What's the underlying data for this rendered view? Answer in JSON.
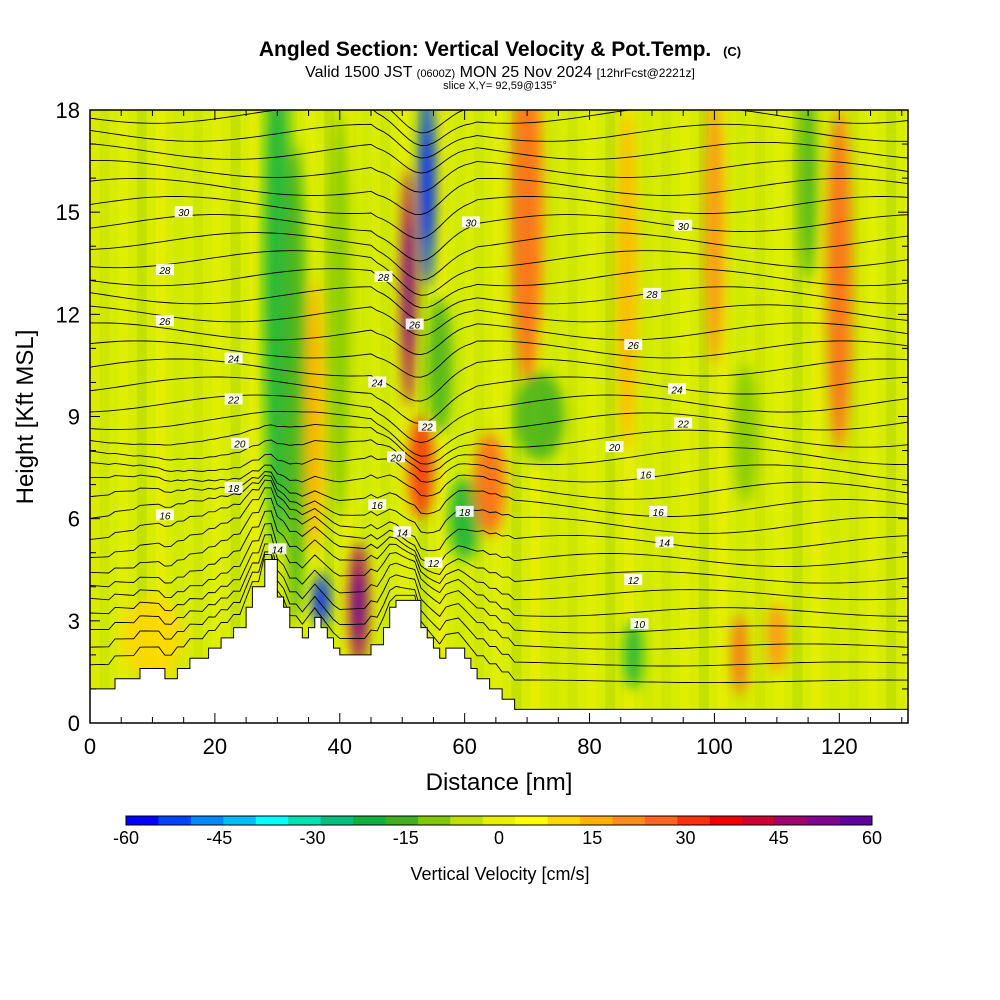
{
  "chart_data": {
    "type": "heatmap",
    "title": "Angled Section: Vertical Velocity & Pot.Temp.",
    "title_unit": "(C)",
    "subtitle_parts": [
      "Valid 1500 JST ",
      "(0600Z)",
      " MON 25 Nov 2024 ",
      "[12hrFcst@2221z]"
    ],
    "slice_label": "slice X,Y= 92,59@135°",
    "xlabel": "Distance [nm]",
    "ylabel": "Height [Kft MSL]",
    "xlim": [
      0,
      131
    ],
    "ylim": [
      0,
      18
    ],
    "x_ticks": [
      "0",
      "20",
      "40",
      "60",
      "80",
      "100",
      "120"
    ],
    "x_tick_values": [
      0,
      20,
      40,
      60,
      80,
      100,
      120
    ],
    "y_ticks": [
      "0",
      "3",
      "6",
      "9",
      "12",
      "15",
      "18"
    ],
    "y_tick_values": [
      0,
      3,
      6,
      9,
      12,
      15,
      18
    ],
    "colorbar": {
      "label": "Vertical Velocity [cm/s]",
      "ticks": [
        "-60",
        "-45",
        "-30",
        "-15",
        "0",
        "15",
        "30",
        "45",
        "60"
      ],
      "range": [
        -60,
        60
      ],
      "colors": [
        "#0000ff",
        "#0044ff",
        "#0088ff",
        "#00bbff",
        "#00ffff",
        "#00e0b0",
        "#00c080",
        "#10b040",
        "#40b020",
        "#80c800",
        "#c0e000",
        "#e8f000",
        "#ffff00",
        "#ffd700",
        "#ffb000",
        "#ff8c1a",
        "#ff6420",
        "#ff3010",
        "#ee0000",
        "#cc0030",
        "#a00070",
        "#800090",
        "#6000a0"
      ]
    },
    "theta_labels": [
      {
        "text": "30",
        "x": 15,
        "y": 15.0
      },
      {
        "text": "30",
        "x": 61,
        "y": 14.7
      },
      {
        "text": "30",
        "x": 95,
        "y": 14.6
      },
      {
        "text": "28",
        "x": 12,
        "y": 13.3
      },
      {
        "text": "28",
        "x": 47,
        "y": 13.1
      },
      {
        "text": "28",
        "x": 90,
        "y": 12.6
      },
      {
        "text": "26",
        "x": 12,
        "y": 11.8
      },
      {
        "text": "26",
        "x": 52,
        "y": 11.7
      },
      {
        "text": "26",
        "x": 87,
        "y": 11.1
      },
      {
        "text": "24",
        "x": 23,
        "y": 10.7
      },
      {
        "text": "24",
        "x": 46,
        "y": 10.0
      },
      {
        "text": "24",
        "x": 94,
        "y": 9.8
      },
      {
        "text": "22",
        "x": 23,
        "y": 9.5
      },
      {
        "text": "22",
        "x": 54,
        "y": 8.7
      },
      {
        "text": "22",
        "x": 95,
        "y": 8.8
      },
      {
        "text": "20",
        "x": 24,
        "y": 8.2
      },
      {
        "text": "20",
        "x": 49,
        "y": 7.8
      },
      {
        "text": "20",
        "x": 84,
        "y": 8.1
      },
      {
        "text": "18",
        "x": 23,
        "y": 6.9
      },
      {
        "text": "18",
        "x": 60,
        "y": 6.2
      },
      {
        "text": "16",
        "x": 12,
        "y": 6.1
      },
      {
        "text": "16",
        "x": 46,
        "y": 6.4
      },
      {
        "text": "16",
        "x": 89,
        "y": 7.3
      },
      {
        "text": "16",
        "x": 91,
        "y": 6.2
      },
      {
        "text": "14",
        "x": 30,
        "y": 5.1
      },
      {
        "text": "14",
        "x": 50,
        "y": 5.6
      },
      {
        "text": "14",
        "x": 92,
        "y": 5.3
      },
      {
        "text": "12",
        "x": 55,
        "y": 4.7
      },
      {
        "text": "12",
        "x": 87,
        "y": 4.2
      },
      {
        "text": "10",
        "x": 88,
        "y": 2.9
      }
    ],
    "terrain": [
      [
        0,
        1.0
      ],
      [
        4,
        1.0
      ],
      [
        4,
        1.3
      ],
      [
        8,
        1.3
      ],
      [
        8,
        1.6
      ],
      [
        12,
        1.6
      ],
      [
        12,
        1.3
      ],
      [
        14,
        1.3
      ],
      [
        14,
        1.6
      ],
      [
        16,
        1.6
      ],
      [
        16,
        1.9
      ],
      [
        19,
        1.9
      ],
      [
        19,
        2.2
      ],
      [
        21,
        2.2
      ],
      [
        21,
        2.5
      ],
      [
        23,
        2.5
      ],
      [
        23,
        2.8
      ],
      [
        25,
        2.8
      ],
      [
        25,
        3.4
      ],
      [
        26,
        3.4
      ],
      [
        26,
        4.0
      ],
      [
        28,
        4.0
      ],
      [
        28,
        4.8
      ],
      [
        30,
        4.8
      ],
      [
        30,
        3.7
      ],
      [
        31,
        3.7
      ],
      [
        31,
        3.4
      ],
      [
        32,
        3.4
      ],
      [
        32,
        2.8
      ],
      [
        34,
        2.8
      ],
      [
        34,
        2.5
      ],
      [
        35,
        2.5
      ],
      [
        35,
        2.8
      ],
      [
        36,
        2.8
      ],
      [
        36,
        3.1
      ],
      [
        37,
        3.1
      ],
      [
        37,
        2.8
      ],
      [
        38,
        2.8
      ],
      [
        38,
        2.5
      ],
      [
        39,
        2.5
      ],
      [
        39,
        2.2
      ],
      [
        40,
        2.2
      ],
      [
        40,
        2.0
      ],
      [
        42,
        2.0
      ],
      [
        42,
        2.0
      ],
      [
        45,
        2.0
      ],
      [
        45,
        2.3
      ],
      [
        47,
        2.3
      ],
      [
        47,
        2.8
      ],
      [
        48,
        2.8
      ],
      [
        48,
        3.4
      ],
      [
        49,
        3.4
      ],
      [
        49,
        3.6
      ],
      [
        53,
        3.6
      ],
      [
        53,
        2.8
      ],
      [
        54,
        2.8
      ],
      [
        54,
        2.5
      ],
      [
        55,
        2.5
      ],
      [
        55,
        2.2
      ],
      [
        56,
        2.2
      ],
      [
        56,
        1.9
      ],
      [
        57,
        1.9
      ],
      [
        57,
        2.2
      ],
      [
        60,
        2.2
      ],
      [
        60,
        1.9
      ],
      [
        61,
        1.9
      ],
      [
        61,
        1.6
      ],
      [
        62,
        1.6
      ],
      [
        62,
        1.3
      ],
      [
        64,
        1.3
      ],
      [
        64,
        1.0
      ],
      [
        66,
        1.0
      ],
      [
        66,
        0.7
      ],
      [
        68,
        0.7
      ],
      [
        68,
        0.4
      ],
      [
        131,
        0.4
      ]
    ],
    "velocity_blobs": [
      {
        "x": 10,
        "y": 2.5,
        "rx": 5,
        "ry": 1.2,
        "v": 12
      },
      {
        "x": 30,
        "y": 13.0,
        "rx": 2.2,
        "ry": 8,
        "v": -22
      },
      {
        "x": 33,
        "y": 10.0,
        "rx": 1.8,
        "ry": 7,
        "v": -18
      },
      {
        "x": 36,
        "y": 9.0,
        "rx": 1.5,
        "ry": 4,
        "v": 18
      },
      {
        "x": 40,
        "y": 12.0,
        "rx": 1.8,
        "ry": 6,
        "v": -12
      },
      {
        "x": 43,
        "y": 3.5,
        "rx": 1.6,
        "ry": 1.8,
        "v": 48
      },
      {
        "x": 37,
        "y": 3.6,
        "rx": 1.4,
        "ry": 0.8,
        "v": -50
      },
      {
        "x": 51,
        "y": 12.8,
        "rx": 1.2,
        "ry": 3.5,
        "v": 45
      },
      {
        "x": 54,
        "y": 15.8,
        "rx": 1.4,
        "ry": 3,
        "v": -52
      },
      {
        "x": 56,
        "y": 10.5,
        "rx": 2.0,
        "ry": 2,
        "v": -18
      },
      {
        "x": 53,
        "y": 7.5,
        "rx": 2.0,
        "ry": 1.5,
        "v": 30
      },
      {
        "x": 60,
        "y": 6.0,
        "rx": 2.5,
        "ry": 1.2,
        "v": -22
      },
      {
        "x": 64,
        "y": 7.0,
        "rx": 2.5,
        "ry": 1.5,
        "v": 25
      },
      {
        "x": 70,
        "y": 15.0,
        "rx": 2.5,
        "ry": 5,
        "v": 25
      },
      {
        "x": 72,
        "y": 9.0,
        "rx": 4.0,
        "ry": 1.3,
        "v": -14
      },
      {
        "x": 86,
        "y": 13.0,
        "rx": 1.5,
        "ry": 5,
        "v": 18
      },
      {
        "x": 100,
        "y": 14.5,
        "rx": 1.5,
        "ry": 4,
        "v": 20
      },
      {
        "x": 105,
        "y": 8.5,
        "rx": 2.0,
        "ry": 2,
        "v": -10
      },
      {
        "x": 115,
        "y": 16.0,
        "rx": 1.5,
        "ry": 3,
        "v": -15
      },
      {
        "x": 120,
        "y": 13.0,
        "rx": 2.0,
        "ry": 5,
        "v": 25
      },
      {
        "x": 104,
        "y": 2.0,
        "rx": 1.2,
        "ry": 1.2,
        "v": 25
      },
      {
        "x": 87,
        "y": 2.0,
        "rx": 1.5,
        "ry": 1.0,
        "v": -20
      },
      {
        "x": 110,
        "y": 2.5,
        "rx": 1.5,
        "ry": 1.0,
        "v": 20
      }
    ]
  }
}
